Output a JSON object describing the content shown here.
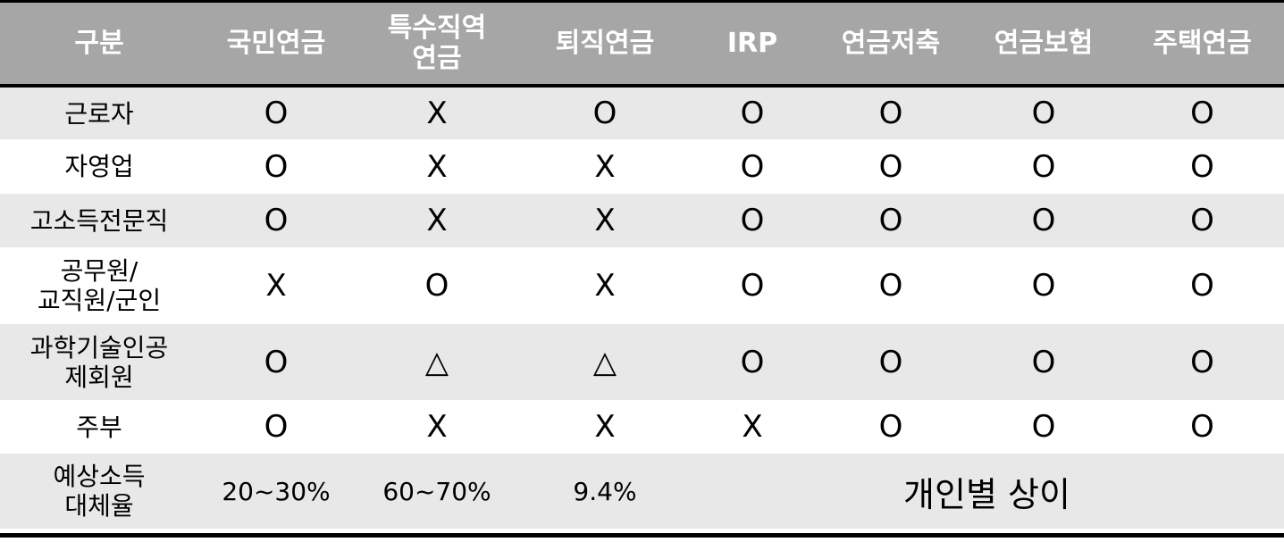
{
  "table": {
    "headers": [
      "구분",
      "국민연금",
      "특수직역\n연금",
      "퇴직연금",
      "IRP",
      "연금저축",
      "연금보험",
      "주택연금"
    ],
    "rows": [
      {
        "label": "근로자",
        "values": [
          "O",
          "X",
          "O",
          "O",
          "O",
          "O",
          "O"
        ]
      },
      {
        "label": "자영업",
        "values": [
          "O",
          "X",
          "X",
          "O",
          "O",
          "O",
          "O"
        ]
      },
      {
        "label": "고소득전문직",
        "values": [
          "O",
          "X",
          "X",
          "O",
          "O",
          "O",
          "O"
        ]
      },
      {
        "label": "공무원/\n교직원/군인",
        "values": [
          "X",
          "O",
          "X",
          "O",
          "O",
          "O",
          "O"
        ]
      },
      {
        "label": "과학기술인공\n제회원",
        "values": [
          "O",
          "△",
          "△",
          "O",
          "O",
          "O",
          "O"
        ]
      },
      {
        "label": "주부",
        "values": [
          "O",
          "X",
          "X",
          "X",
          "O",
          "O",
          "O"
        ]
      }
    ],
    "last_row": {
      "label": "예상소득\n대체율",
      "values": [
        "20~30%",
        "60~70%",
        "9.4%"
      ],
      "merged_value": "개인별 상이"
    }
  }
}
